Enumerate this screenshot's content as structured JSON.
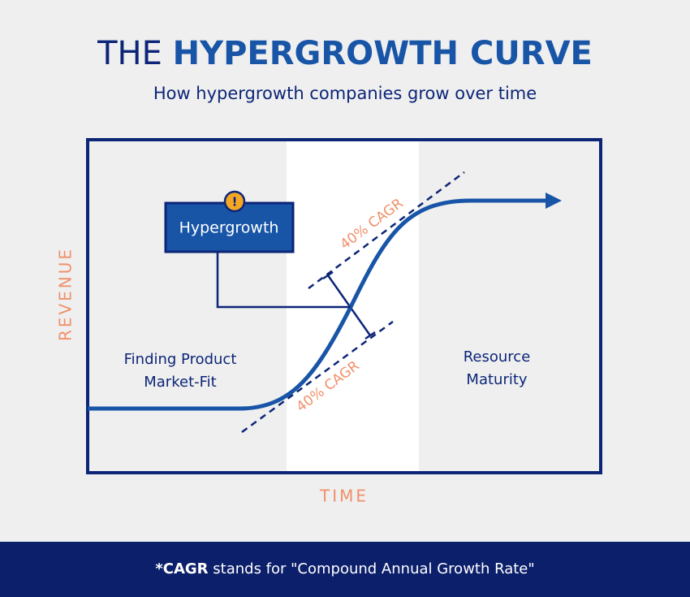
{
  "header": {
    "title_prefix": "THE",
    "title_emphasis": "HYPERGROWTH CURVE",
    "subtitle": "How hypergrowth companies grow over time"
  },
  "diagram": {
    "y_axis_label": "REVENUE",
    "x_axis_label": "TIME",
    "callout": "Hypergrowth",
    "phases": [
      [
        "Finding Product",
        "Market-Fit"
      ],
      [
        "Resource",
        "Maturity"
      ]
    ],
    "rate_labels": [
      "40% CAGR",
      "40% CAGR"
    ]
  },
  "footer": {
    "emphasis": "*CAGR",
    "text": "stands for \"Compound Annual Growth Rate\""
  }
}
